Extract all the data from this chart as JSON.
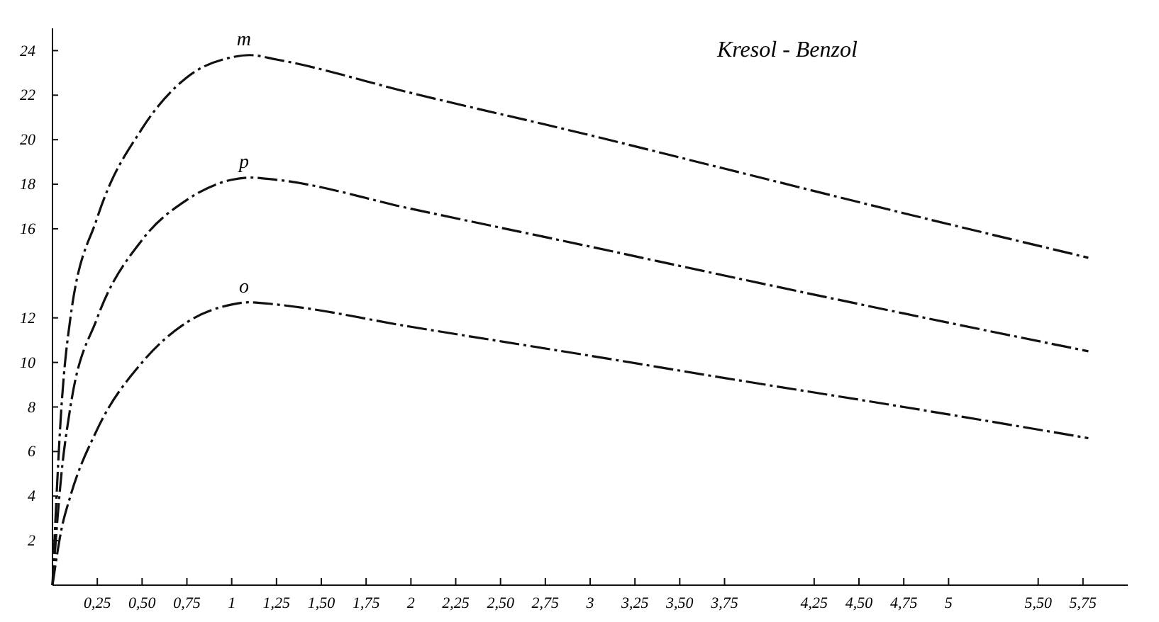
{
  "chart_data": {
    "type": "line",
    "title": "Kresol - Benzol",
    "xlim": [
      0,
      6
    ],
    "ylim": [
      0,
      25
    ],
    "xticks": [
      {
        "value": 0.25,
        "label": "0,25"
      },
      {
        "value": 0.5,
        "label": "0,50"
      },
      {
        "value": 0.75,
        "label": "0,75"
      },
      {
        "value": 1,
        "label": "1"
      },
      {
        "value": 1.25,
        "label": "1,25"
      },
      {
        "value": 1.5,
        "label": "1,50"
      },
      {
        "value": 1.75,
        "label": "1,75"
      },
      {
        "value": 2,
        "label": "2"
      },
      {
        "value": 2.25,
        "label": "2,25"
      },
      {
        "value": 2.5,
        "label": "2,50"
      },
      {
        "value": 2.75,
        "label": "2,75"
      },
      {
        "value": 3,
        "label": "3"
      },
      {
        "value": 3.25,
        "label": "3,25"
      },
      {
        "value": 3.5,
        "label": "3,50"
      },
      {
        "value": 3.75,
        "label": "3,75"
      },
      {
        "value": 4.25,
        "label": "4,25"
      },
      {
        "value": 4.5,
        "label": "4,50"
      },
      {
        "value": 4.75,
        "label": "4,75"
      },
      {
        "value": 5,
        "label": "5"
      },
      {
        "value": 5.5,
        "label": "5,50"
      },
      {
        "value": 5.75,
        "label": "5,75"
      }
    ],
    "yticks": [
      2,
      4,
      6,
      8,
      10,
      12,
      16,
      18,
      20,
      22,
      24
    ],
    "x": [
      0,
      0.05,
      0.1,
      0.25,
      0.5,
      0.75,
      1,
      1.1,
      1.25,
      2,
      3,
      3.75,
      4.75,
      5.78
    ],
    "series": [
      {
        "name": "m",
        "color": "#111111",
        "values": [
          0,
          8,
          12,
          16.5,
          20.5,
          22.8,
          23.7,
          23.8,
          23.6,
          22.1,
          20.2,
          18.7,
          16.7,
          14.7
        ]
      },
      {
        "name": "p",
        "color": "#111111",
        "values": [
          0,
          5,
          8,
          12,
          15.5,
          17.3,
          18.2,
          18.3,
          18.2,
          16.9,
          15.2,
          13.9,
          12.2,
          10.5
        ]
      },
      {
        "name": "o",
        "color": "#111111",
        "values": [
          0,
          2.5,
          4,
          7,
          10,
          11.8,
          12.6,
          12.7,
          12.6,
          11.6,
          10.3,
          9.3,
          8,
          6.6
        ]
      }
    ],
    "line_style": "dashed",
    "grid": false,
    "marker": "none"
  }
}
